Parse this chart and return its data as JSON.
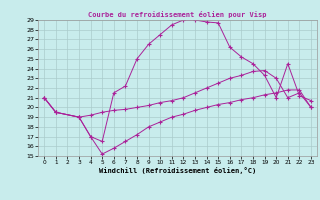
{
  "title": "Courbe du refroidissement éolien pour Visp",
  "xlabel": "Windchill (Refroidissement éolien,°C)",
  "bg_color": "#c8ecec",
  "line_color": "#aa2299",
  "grid_color": "#aacccc",
  "xlim": [
    -0.5,
    23.5
  ],
  "ylim": [
    15,
    29
  ],
  "xticks": [
    0,
    1,
    2,
    3,
    4,
    5,
    6,
    7,
    8,
    9,
    10,
    11,
    12,
    13,
    14,
    15,
    16,
    17,
    18,
    19,
    20,
    21,
    22,
    23
  ],
  "yticks": [
    15,
    16,
    17,
    18,
    19,
    20,
    21,
    22,
    23,
    24,
    25,
    26,
    27,
    28,
    29
  ],
  "line1_x": [
    0,
    1,
    3,
    4,
    5,
    6,
    7,
    8,
    9,
    10,
    11,
    12,
    13,
    14,
    15,
    16,
    17,
    18,
    19,
    20,
    21,
    22,
    23
  ],
  "line1_y": [
    21.0,
    19.5,
    19.0,
    17.0,
    15.2,
    15.8,
    16.5,
    17.2,
    18.0,
    18.5,
    19.0,
    19.3,
    19.7,
    20.0,
    20.3,
    20.5,
    20.8,
    21.0,
    21.3,
    21.5,
    21.8,
    21.8,
    20.0
  ],
  "line2_x": [
    0,
    1,
    3,
    4,
    5,
    6,
    7,
    8,
    9,
    10,
    11,
    12,
    13,
    14,
    15,
    16,
    17,
    18,
    19,
    20,
    21,
    22,
    23
  ],
  "line2_y": [
    21.0,
    19.5,
    19.0,
    17.0,
    16.5,
    21.5,
    22.2,
    25.0,
    26.5,
    27.5,
    28.5,
    29.0,
    29.0,
    28.8,
    28.7,
    26.2,
    25.2,
    24.5,
    23.3,
    21.0,
    24.5,
    21.2,
    20.7
  ],
  "line3_x": [
    0,
    1,
    3,
    4,
    5,
    6,
    7,
    8,
    9,
    10,
    11,
    12,
    13,
    14,
    15,
    16,
    17,
    18,
    19,
    20,
    21,
    22,
    23
  ],
  "line3_y": [
    21.0,
    19.5,
    19.0,
    19.2,
    19.5,
    19.7,
    19.8,
    20.0,
    20.2,
    20.5,
    20.7,
    21.0,
    21.5,
    22.0,
    22.5,
    23.0,
    23.3,
    23.7,
    23.8,
    23.0,
    21.0,
    21.5,
    20.0
  ]
}
